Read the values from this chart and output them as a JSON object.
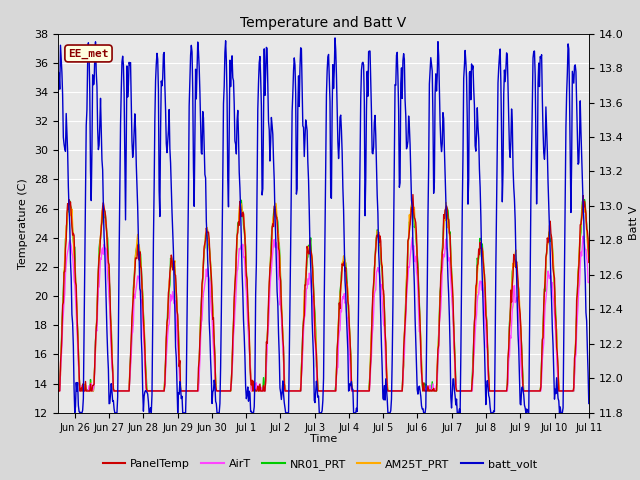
{
  "title": "Temperature and Batt V",
  "xlabel": "Time",
  "ylabel_left": "Temperature (C)",
  "ylabel_right": "Batt V",
  "annotation": "EE_met",
  "ylim_left": [
    12,
    38
  ],
  "ylim_right": [
    11.8,
    14.0
  ],
  "yticks_left": [
    12,
    14,
    16,
    18,
    20,
    22,
    24,
    26,
    28,
    30,
    32,
    34,
    36,
    38
  ],
  "yticks_right": [
    11.8,
    12.0,
    12.2,
    12.4,
    12.6,
    12.8,
    13.0,
    13.2,
    13.4,
    13.6,
    13.8,
    14.0
  ],
  "fig_bg_color": "#d8d8d8",
  "plot_bg_color": "#e8e8e8",
  "grid_color": "white",
  "series": {
    "PanelTemp": {
      "color": "#cc0000",
      "lw": 1.0
    },
    "AirT": {
      "color": "#ff44ff",
      "lw": 1.0
    },
    "NR01_PRT": {
      "color": "#00cc00",
      "lw": 1.0
    },
    "AM25T_PRT": {
      "color": "#ffaa00",
      "lw": 1.0
    },
    "batt_volt": {
      "color": "#0000cc",
      "lw": 1.0
    }
  },
  "xtick_labels": [
    "Jun 26",
    "Jun 27",
    "Jun 28",
    "Jun 29",
    "Jun 30",
    "Jul 1",
    "Jul 2",
    "Jul 3",
    "Jul 4",
    "Jul 5",
    "Jul 6",
    "Jul 7",
    "Jul 8",
    "Jul 9",
    "Jul 10",
    "Jul 11"
  ],
  "legend_labels": [
    "PanelTemp",
    "AirT",
    "NR01_PRT",
    "AM25T_PRT",
    "batt_volt"
  ]
}
